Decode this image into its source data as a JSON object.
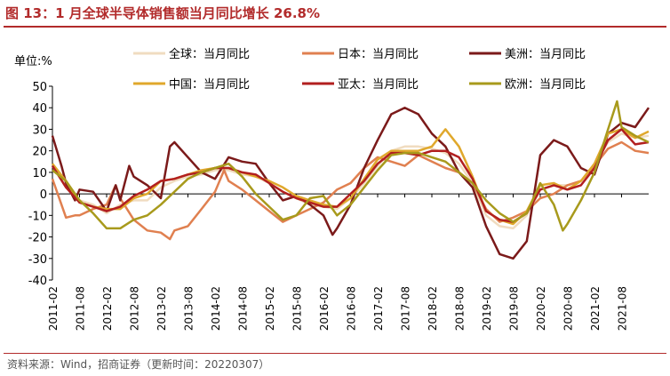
{
  "figure": {
    "title": "图 13：1 月全球半导体销售额当月同比增长 26.8%",
    "source": "资料来源：Wind，招商证券（更新时间：20220307）"
  },
  "chart_data": {
    "type": "line",
    "ylabel": "单位:%",
    "ylim": [
      -40,
      50
    ],
    "yticks": [
      50,
      40,
      30,
      20,
      10,
      0,
      -10,
      -20,
      -30,
      -40
    ],
    "xlim": [
      2011.083,
      2022.083
    ],
    "xticks": [
      {
        "label": "2011-02",
        "x": 2011.083
      },
      {
        "label": "2011-08",
        "x": 2011.583
      },
      {
        "label": "2012-02",
        "x": 2012.083
      },
      {
        "label": "2012-08",
        "x": 2012.583
      },
      {
        "label": "2013-02",
        "x": 2013.083
      },
      {
        "label": "2013-08",
        "x": 2013.583
      },
      {
        "label": "2014-02",
        "x": 2014.083
      },
      {
        "label": "2014-08",
        "x": 2014.583
      },
      {
        "label": "2015-02",
        "x": 2015.083
      },
      {
        "label": "2015-08",
        "x": 2015.583
      },
      {
        "label": "2016-02",
        "x": 2016.083
      },
      {
        "label": "2016-08",
        "x": 2016.583
      },
      {
        "label": "2017-02",
        "x": 2017.083
      },
      {
        "label": "2017-08",
        "x": 2017.583
      },
      {
        "label": "2018-02",
        "x": 2018.083
      },
      {
        "label": "2018-08",
        "x": 2018.583
      },
      {
        "label": "2019-02",
        "x": 2019.083
      },
      {
        "label": "2019-08",
        "x": 2019.583
      },
      {
        "label": "2020-02",
        "x": 2020.083
      },
      {
        "label": "2020-08",
        "x": 2020.583
      },
      {
        "label": "2021-02",
        "x": 2021.083
      },
      {
        "label": "2021-08",
        "x": 2021.583
      }
    ],
    "grid": false,
    "legend_position": "top",
    "series": [
      {
        "name": "全球：当月同比",
        "color": "#f0dcc0",
        "points": [
          [
            2011.083,
            13
          ],
          [
            2011.333,
            3
          ],
          [
            2011.583,
            -3
          ],
          [
            2011.833,
            -5
          ],
          [
            2012.083,
            -9
          ],
          [
            2012.333,
            -5
          ],
          [
            2012.583,
            -3
          ],
          [
            2012.833,
            -3
          ],
          [
            2013.083,
            3
          ],
          [
            2013.333,
            6
          ],
          [
            2013.583,
            8
          ],
          [
            2013.833,
            9
          ],
          [
            2014.083,
            11
          ],
          [
            2014.333,
            11
          ],
          [
            2014.583,
            9
          ],
          [
            2014.833,
            8
          ],
          [
            2015.083,
            5
          ],
          [
            2015.333,
            1
          ],
          [
            2015.583,
            -2
          ],
          [
            2015.833,
            -5
          ],
          [
            2016.083,
            -6
          ],
          [
            2016.333,
            -7
          ],
          [
            2016.583,
            -2
          ],
          [
            2016.833,
            5
          ],
          [
            2017.083,
            13
          ],
          [
            2017.333,
            20
          ],
          [
            2017.583,
            22
          ],
          [
            2017.833,
            22
          ],
          [
            2018.083,
            21
          ],
          [
            2018.333,
            19
          ],
          [
            2018.583,
            14
          ],
          [
            2018.833,
            5
          ],
          [
            2019.083,
            -10
          ],
          [
            2019.333,
            -15
          ],
          [
            2019.583,
            -16
          ],
          [
            2019.833,
            -10
          ],
          [
            2020.083,
            2
          ],
          [
            2020.333,
            4
          ],
          [
            2020.583,
            4
          ],
          [
            2020.833,
            6
          ],
          [
            2021.083,
            14
          ],
          [
            2021.333,
            24
          ],
          [
            2021.583,
            28
          ],
          [
            2021.833,
            26
          ],
          [
            2022.083,
            27
          ]
        ]
      },
      {
        "name": "日本：当月同比",
        "color": "#e08050",
        "points": [
          [
            2011.083,
            7
          ],
          [
            2011.333,
            -11
          ],
          [
            2011.5,
            -10
          ],
          [
            2011.583,
            -10
          ],
          [
            2011.833,
            -7
          ],
          [
            2012.083,
            -5
          ],
          [
            2012.25,
            4
          ],
          [
            2012.333,
            -2
          ],
          [
            2012.583,
            -12
          ],
          [
            2012.833,
            -17
          ],
          [
            2013.083,
            -18
          ],
          [
            2013.25,
            -21
          ],
          [
            2013.333,
            -17
          ],
          [
            2013.583,
            -15
          ],
          [
            2013.833,
            -7
          ],
          [
            2014.083,
            1
          ],
          [
            2014.25,
            11
          ],
          [
            2014.333,
            6
          ],
          [
            2014.583,
            2
          ],
          [
            2014.833,
            -3
          ],
          [
            2015.083,
            -8
          ],
          [
            2015.333,
            -13
          ],
          [
            2015.583,
            -10
          ],
          [
            2015.833,
            -7
          ],
          [
            2016.083,
            -4
          ],
          [
            2016.333,
            2
          ],
          [
            2016.583,
            5
          ],
          [
            2016.833,
            12
          ],
          [
            2017.083,
            17
          ],
          [
            2017.333,
            15
          ],
          [
            2017.583,
            13
          ],
          [
            2017.833,
            18
          ],
          [
            2018.083,
            15
          ],
          [
            2018.333,
            12
          ],
          [
            2018.583,
            10
          ],
          [
            2018.833,
            5
          ],
          [
            2019.083,
            -7
          ],
          [
            2019.333,
            -13
          ],
          [
            2019.583,
            -11
          ],
          [
            2019.833,
            -8
          ],
          [
            2020.083,
            -2
          ],
          [
            2020.333,
            0
          ],
          [
            2020.583,
            4
          ],
          [
            2020.833,
            6
          ],
          [
            2021.083,
            13
          ],
          [
            2021.333,
            21
          ],
          [
            2021.583,
            24
          ],
          [
            2021.833,
            20
          ],
          [
            2022.083,
            19
          ]
        ]
      },
      {
        "name": "美洲：当月同比",
        "color": "#7b1a1a",
        "points": [
          [
            2011.083,
            27
          ],
          [
            2011.25,
            13
          ],
          [
            2011.333,
            5
          ],
          [
            2011.5,
            -3
          ],
          [
            2011.583,
            2
          ],
          [
            2011.833,
            1
          ],
          [
            2012.083,
            -8
          ],
          [
            2012.25,
            4
          ],
          [
            2012.333,
            -3
          ],
          [
            2012.5,
            13
          ],
          [
            2012.583,
            8
          ],
          [
            2012.833,
            4
          ],
          [
            2013.083,
            -2
          ],
          [
            2013.25,
            22
          ],
          [
            2013.333,
            24
          ],
          [
            2013.583,
            17
          ],
          [
            2013.833,
            10
          ],
          [
            2014.083,
            7
          ],
          [
            2014.333,
            17
          ],
          [
            2014.583,
            15
          ],
          [
            2014.833,
            14
          ],
          [
            2015.083,
            5
          ],
          [
            2015.333,
            -3
          ],
          [
            2015.583,
            -1
          ],
          [
            2015.833,
            -5
          ],
          [
            2016.083,
            -10
          ],
          [
            2016.25,
            -19
          ],
          [
            2016.333,
            -16
          ],
          [
            2016.583,
            -5
          ],
          [
            2016.833,
            12
          ],
          [
            2017.083,
            25
          ],
          [
            2017.333,
            37
          ],
          [
            2017.583,
            40
          ],
          [
            2017.833,
            37
          ],
          [
            2018.083,
            28
          ],
          [
            2018.333,
            22
          ],
          [
            2018.583,
            10
          ],
          [
            2018.833,
            3
          ],
          [
            2019.083,
            -15
          ],
          [
            2019.333,
            -28
          ],
          [
            2019.583,
            -30
          ],
          [
            2019.833,
            -22
          ],
          [
            2020.083,
            18
          ],
          [
            2020.333,
            25
          ],
          [
            2020.583,
            22
          ],
          [
            2020.833,
            12
          ],
          [
            2021.083,
            9
          ],
          [
            2021.333,
            28
          ],
          [
            2021.583,
            33
          ],
          [
            2021.833,
            31
          ],
          [
            2022.083,
            40
          ]
        ]
      },
      {
        "name": "中国：当月同比",
        "color": "#e0a82c",
        "points": [
          [
            2011.083,
            14
          ],
          [
            2011.333,
            6
          ],
          [
            2011.583,
            -4
          ],
          [
            2011.833,
            -6
          ],
          [
            2012.083,
            -7
          ],
          [
            2012.333,
            -7
          ],
          [
            2012.583,
            -2
          ],
          [
            2012.833,
            0
          ],
          [
            2013.083,
            6
          ],
          [
            2013.333,
            7
          ],
          [
            2013.583,
            9
          ],
          [
            2013.833,
            11
          ],
          [
            2014.083,
            12
          ],
          [
            2014.333,
            12
          ],
          [
            2014.583,
            10
          ],
          [
            2014.833,
            8
          ],
          [
            2015.083,
            6
          ],
          [
            2015.333,
            3
          ],
          [
            2015.583,
            -1
          ],
          [
            2015.833,
            -3
          ],
          [
            2016.083,
            -5
          ],
          [
            2016.333,
            -6
          ],
          [
            2016.583,
            -2
          ],
          [
            2016.833,
            7
          ],
          [
            2017.083,
            16
          ],
          [
            2017.333,
            20
          ],
          [
            2017.583,
            20
          ],
          [
            2017.833,
            20
          ],
          [
            2018.083,
            22
          ],
          [
            2018.333,
            30
          ],
          [
            2018.583,
            22
          ],
          [
            2018.833,
            8
          ],
          [
            2019.083,
            -8
          ],
          [
            2019.333,
            -12
          ],
          [
            2019.583,
            -14
          ],
          [
            2019.833,
            -8
          ],
          [
            2020.083,
            4
          ],
          [
            2020.333,
            5
          ],
          [
            2020.583,
            2
          ],
          [
            2020.833,
            6
          ],
          [
            2021.083,
            14
          ],
          [
            2021.333,
            28
          ],
          [
            2021.583,
            30
          ],
          [
            2021.833,
            26
          ],
          [
            2022.083,
            29
          ]
        ]
      },
      {
        "name": "亚太：当月同比",
        "color": "#b21f1f",
        "points": [
          [
            2011.083,
            13
          ],
          [
            2011.333,
            3
          ],
          [
            2011.583,
            -4
          ],
          [
            2011.833,
            -6
          ],
          [
            2012.083,
            -8
          ],
          [
            2012.333,
            -6
          ],
          [
            2012.583,
            -1
          ],
          [
            2012.833,
            2
          ],
          [
            2013.083,
            6
          ],
          [
            2013.333,
            7
          ],
          [
            2013.583,
            9
          ],
          [
            2013.833,
            10
          ],
          [
            2014.083,
            12
          ],
          [
            2014.333,
            12
          ],
          [
            2014.583,
            10
          ],
          [
            2014.833,
            9
          ],
          [
            2015.083,
            5
          ],
          [
            2015.333,
            1
          ],
          [
            2015.583,
            -2
          ],
          [
            2015.833,
            -4
          ],
          [
            2016.083,
            -6
          ],
          [
            2016.333,
            -6
          ],
          [
            2016.583,
            0
          ],
          [
            2016.833,
            6
          ],
          [
            2017.083,
            14
          ],
          [
            2017.333,
            19
          ],
          [
            2017.583,
            19
          ],
          [
            2017.833,
            18
          ],
          [
            2018.083,
            20
          ],
          [
            2018.333,
            20
          ],
          [
            2018.583,
            17
          ],
          [
            2018.833,
            7
          ],
          [
            2019.083,
            -8
          ],
          [
            2019.333,
            -12
          ],
          [
            2019.583,
            -13
          ],
          [
            2019.833,
            -9
          ],
          [
            2020.083,
            2
          ],
          [
            2020.333,
            4
          ],
          [
            2020.583,
            2
          ],
          [
            2020.833,
            4
          ],
          [
            2021.083,
            12
          ],
          [
            2021.333,
            25
          ],
          [
            2021.583,
            30
          ],
          [
            2021.833,
            23
          ],
          [
            2022.083,
            24
          ]
        ]
      },
      {
        "name": "欧洲：当月同比",
        "color": "#a89a1c",
        "points": [
          [
            2011.083,
            11
          ],
          [
            2011.333,
            6
          ],
          [
            2011.583,
            -3
          ],
          [
            2011.833,
            -9
          ],
          [
            2012.083,
            -16
          ],
          [
            2012.333,
            -16
          ],
          [
            2012.583,
            -12
          ],
          [
            2012.833,
            -10
          ],
          [
            2013.083,
            -5
          ],
          [
            2013.333,
            1
          ],
          [
            2013.583,
            7
          ],
          [
            2013.833,
            10
          ],
          [
            2014.083,
            12
          ],
          [
            2014.333,
            14
          ],
          [
            2014.583,
            8
          ],
          [
            2014.833,
            0
          ],
          [
            2015.083,
            -6
          ],
          [
            2015.333,
            -12
          ],
          [
            2015.583,
            -10
          ],
          [
            2015.833,
            -2
          ],
          [
            2016.083,
            -1
          ],
          [
            2016.333,
            -10
          ],
          [
            2016.583,
            -5
          ],
          [
            2016.833,
            3
          ],
          [
            2017.083,
            11
          ],
          [
            2017.333,
            18
          ],
          [
            2017.583,
            19
          ],
          [
            2017.833,
            19
          ],
          [
            2018.083,
            17
          ],
          [
            2018.333,
            15
          ],
          [
            2018.583,
            10
          ],
          [
            2018.833,
            5
          ],
          [
            2019.083,
            -3
          ],
          [
            2019.333,
            -9
          ],
          [
            2019.583,
            -13
          ],
          [
            2019.833,
            -9
          ],
          [
            2020.083,
            5
          ],
          [
            2020.333,
            -5
          ],
          [
            2020.5,
            -17
          ],
          [
            2020.583,
            -14
          ],
          [
            2020.833,
            -3
          ],
          [
            2021.083,
            10
          ],
          [
            2021.333,
            30
          ],
          [
            2021.5,
            43
          ],
          [
            2021.583,
            31
          ],
          [
            2021.833,
            27
          ],
          [
            2022.083,
            24
          ]
        ]
      }
    ]
  }
}
